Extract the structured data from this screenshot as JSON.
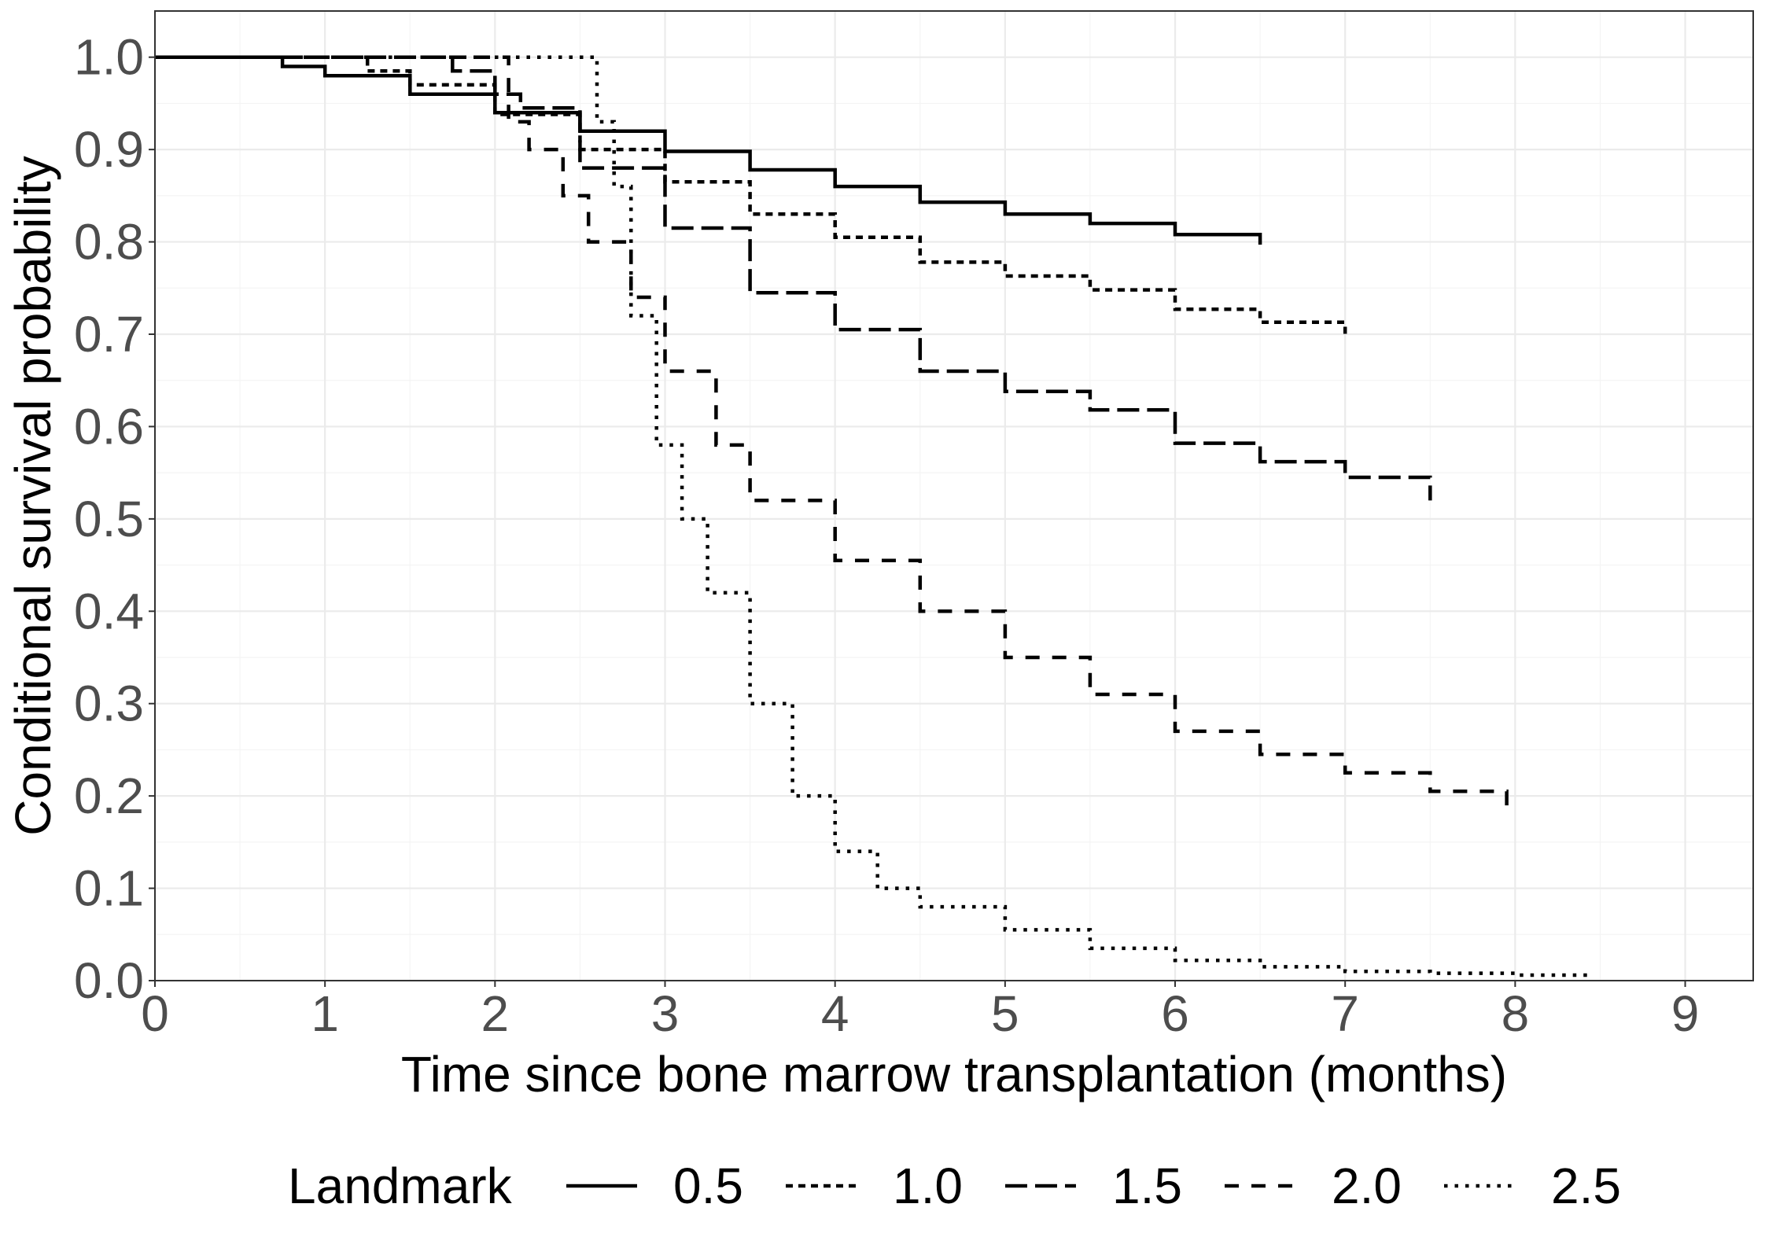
{
  "chart_data": {
    "type": "line",
    "step": true,
    "xlabel": "Time since bone marrow transplantation (months)",
    "ylabel": "Conditional survival probability",
    "xlim": [
      0,
      9.4
    ],
    "ylim": [
      0,
      1.05
    ],
    "x_ticks": [
      "0",
      "1",
      "2",
      "3",
      "4",
      "5",
      "6",
      "7",
      "8",
      "9"
    ],
    "y_ticks": [
      "0.0",
      "0.1",
      "0.2",
      "0.3",
      "0.4",
      "0.5",
      "0.6",
      "0.7",
      "0.8",
      "0.9",
      "1.0"
    ],
    "grid": true,
    "legend": {
      "title": "Landmark",
      "position": "bottom"
    },
    "series": [
      {
        "name": "0.5",
        "dash": "solid",
        "points": [
          [
            0,
            1.0
          ],
          [
            0.5,
            1.0
          ],
          [
            0.75,
            0.99
          ],
          [
            1.0,
            0.98
          ],
          [
            1.5,
            0.96
          ],
          [
            2.0,
            0.94
          ],
          [
            2.5,
            0.92
          ],
          [
            3.0,
            0.898
          ],
          [
            3.5,
            0.878
          ],
          [
            4.0,
            0.86
          ],
          [
            4.5,
            0.843
          ],
          [
            5.0,
            0.83
          ],
          [
            5.5,
            0.82
          ],
          [
            6.0,
            0.808
          ],
          [
            6.5,
            0.797
          ]
        ]
      },
      {
        "name": "1.0",
        "dash": "short-dash",
        "points": [
          [
            0,
            1.0
          ],
          [
            1.0,
            1.0
          ],
          [
            1.25,
            0.985
          ],
          [
            1.5,
            0.97
          ],
          [
            2.0,
            0.938
          ],
          [
            2.5,
            0.9
          ],
          [
            3.0,
            0.865
          ],
          [
            3.5,
            0.83
          ],
          [
            4.0,
            0.805
          ],
          [
            4.5,
            0.778
          ],
          [
            5.0,
            0.763
          ],
          [
            5.5,
            0.748
          ],
          [
            6.0,
            0.727
          ],
          [
            6.5,
            0.713
          ],
          [
            7.0,
            0.7
          ]
        ]
      },
      {
        "name": "1.5",
        "dash": "long-dash",
        "points": [
          [
            0,
            1.0
          ],
          [
            1.5,
            1.0
          ],
          [
            1.75,
            0.985
          ],
          [
            2.0,
            0.96
          ],
          [
            2.15,
            0.945
          ],
          [
            2.5,
            0.88
          ],
          [
            3.0,
            0.815
          ],
          [
            3.5,
            0.745
          ],
          [
            4.0,
            0.705
          ],
          [
            4.5,
            0.66
          ],
          [
            5.0,
            0.638
          ],
          [
            5.5,
            0.618
          ],
          [
            6.0,
            0.582
          ],
          [
            6.5,
            0.562
          ],
          [
            7.0,
            0.545
          ],
          [
            7.5,
            0.52
          ]
        ]
      },
      {
        "name": "2.0",
        "dash": "medium-dash",
        "points": [
          [
            0,
            1.0
          ],
          [
            2.0,
            1.0
          ],
          [
            2.08,
            0.93
          ],
          [
            2.2,
            0.9
          ],
          [
            2.4,
            0.85
          ],
          [
            2.55,
            0.8
          ],
          [
            2.8,
            0.74
          ],
          [
            3.0,
            0.66
          ],
          [
            3.3,
            0.58
          ],
          [
            3.5,
            0.52
          ],
          [
            4.0,
            0.455
          ],
          [
            4.5,
            0.4
          ],
          [
            5.0,
            0.35
          ],
          [
            5.5,
            0.31
          ],
          [
            6.0,
            0.27
          ],
          [
            6.5,
            0.245
          ],
          [
            7.0,
            0.225
          ],
          [
            7.5,
            0.205
          ],
          [
            7.95,
            0.188
          ]
        ]
      },
      {
        "name": "2.5",
        "dash": "dotted",
        "points": [
          [
            0,
            1.0
          ],
          [
            2.55,
            1.0
          ],
          [
            2.6,
            0.93
          ],
          [
            2.7,
            0.86
          ],
          [
            2.8,
            0.72
          ],
          [
            2.95,
            0.58
          ],
          [
            3.1,
            0.5
          ],
          [
            3.25,
            0.42
          ],
          [
            3.5,
            0.3
          ],
          [
            3.75,
            0.2
          ],
          [
            4.0,
            0.14
          ],
          [
            4.25,
            0.1
          ],
          [
            4.5,
            0.08
          ],
          [
            5.0,
            0.055
          ],
          [
            5.5,
            0.035
          ],
          [
            6.0,
            0.022
          ],
          [
            6.5,
            0.015
          ],
          [
            7.0,
            0.01
          ],
          [
            7.5,
            0.008
          ],
          [
            8.0,
            0.006
          ],
          [
            8.45,
            0.005
          ]
        ]
      }
    ]
  }
}
